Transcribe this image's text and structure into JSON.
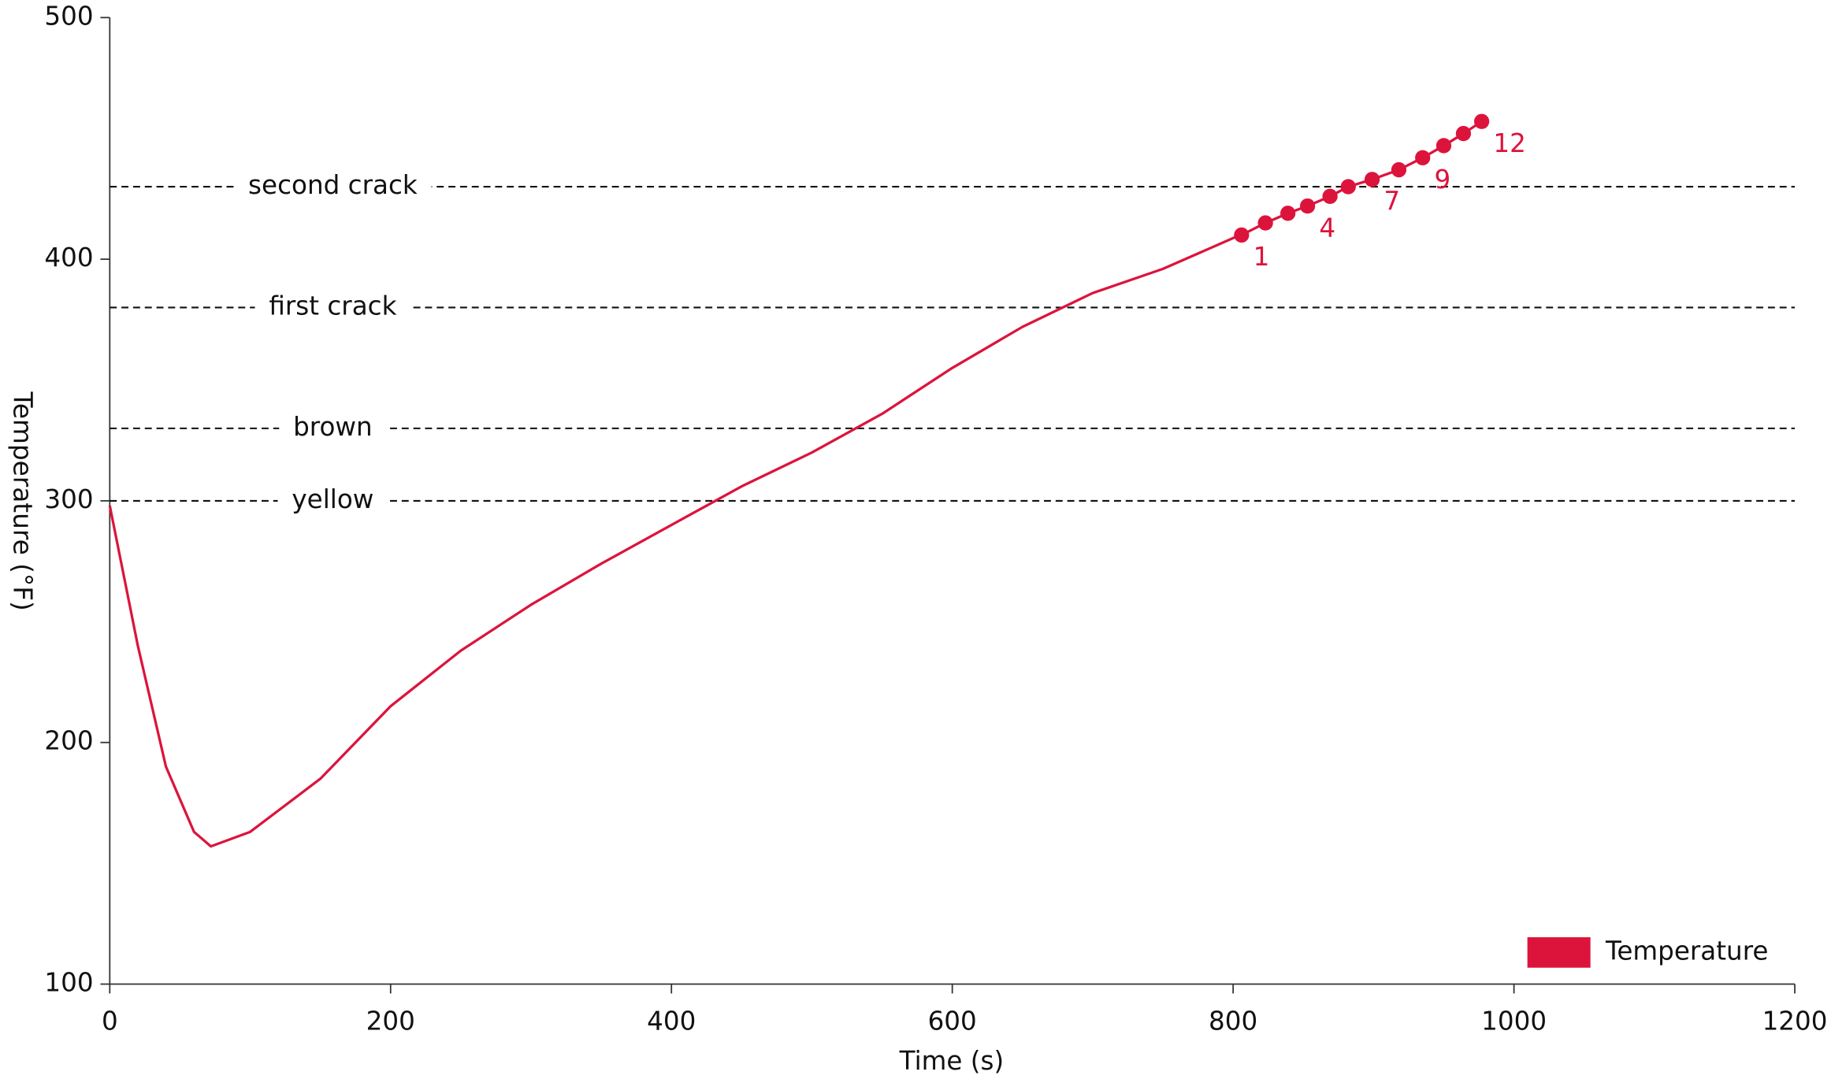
{
  "chart_data": {
    "type": "line",
    "x_label": "Time (s)",
    "y_label": "Temperature (°F)",
    "xlim": [
      0,
      1200
    ],
    "ylim": [
      100,
      500
    ],
    "xticks": [
      0,
      200,
      400,
      600,
      800,
      1000,
      1200
    ],
    "yticks": [
      100,
      200,
      300,
      400,
      500
    ],
    "grid": false,
    "legend": "lower right",
    "series": [
      {
        "name": "Temperature",
        "color": "#dc143c",
        "x": [
          0,
          20,
          40,
          60,
          72,
          100,
          150,
          200,
          250,
          300,
          350,
          400,
          450,
          500,
          550,
          600,
          650,
          700,
          750,
          805
        ],
        "values": [
          298,
          240,
          190,
          163,
          157,
          163,
          185,
          215,
          238,
          257,
          274,
          290,
          306,
          320,
          336,
          355,
          372,
          386,
          396,
          410
        ]
      }
    ],
    "markers": {
      "color": "#dc143c",
      "x": [
        806,
        823,
        839,
        853,
        869,
        882,
        899,
        918,
        935,
        950,
        964,
        977
      ],
      "values": [
        410,
        415,
        419,
        422,
        426,
        430,
        433,
        437,
        442,
        447,
        452,
        457
      ],
      "labels": [
        "1",
        null,
        null,
        "4",
        null,
        null,
        "7",
        null,
        "9",
        null,
        null,
        "12"
      ]
    },
    "reference_lines": [
      {
        "label": "yellow",
        "value": 300
      },
      {
        "label": "brown",
        "value": 330
      },
      {
        "label": "first crack",
        "value": 380
      },
      {
        "label": "second crack",
        "value": 430
      }
    ]
  }
}
